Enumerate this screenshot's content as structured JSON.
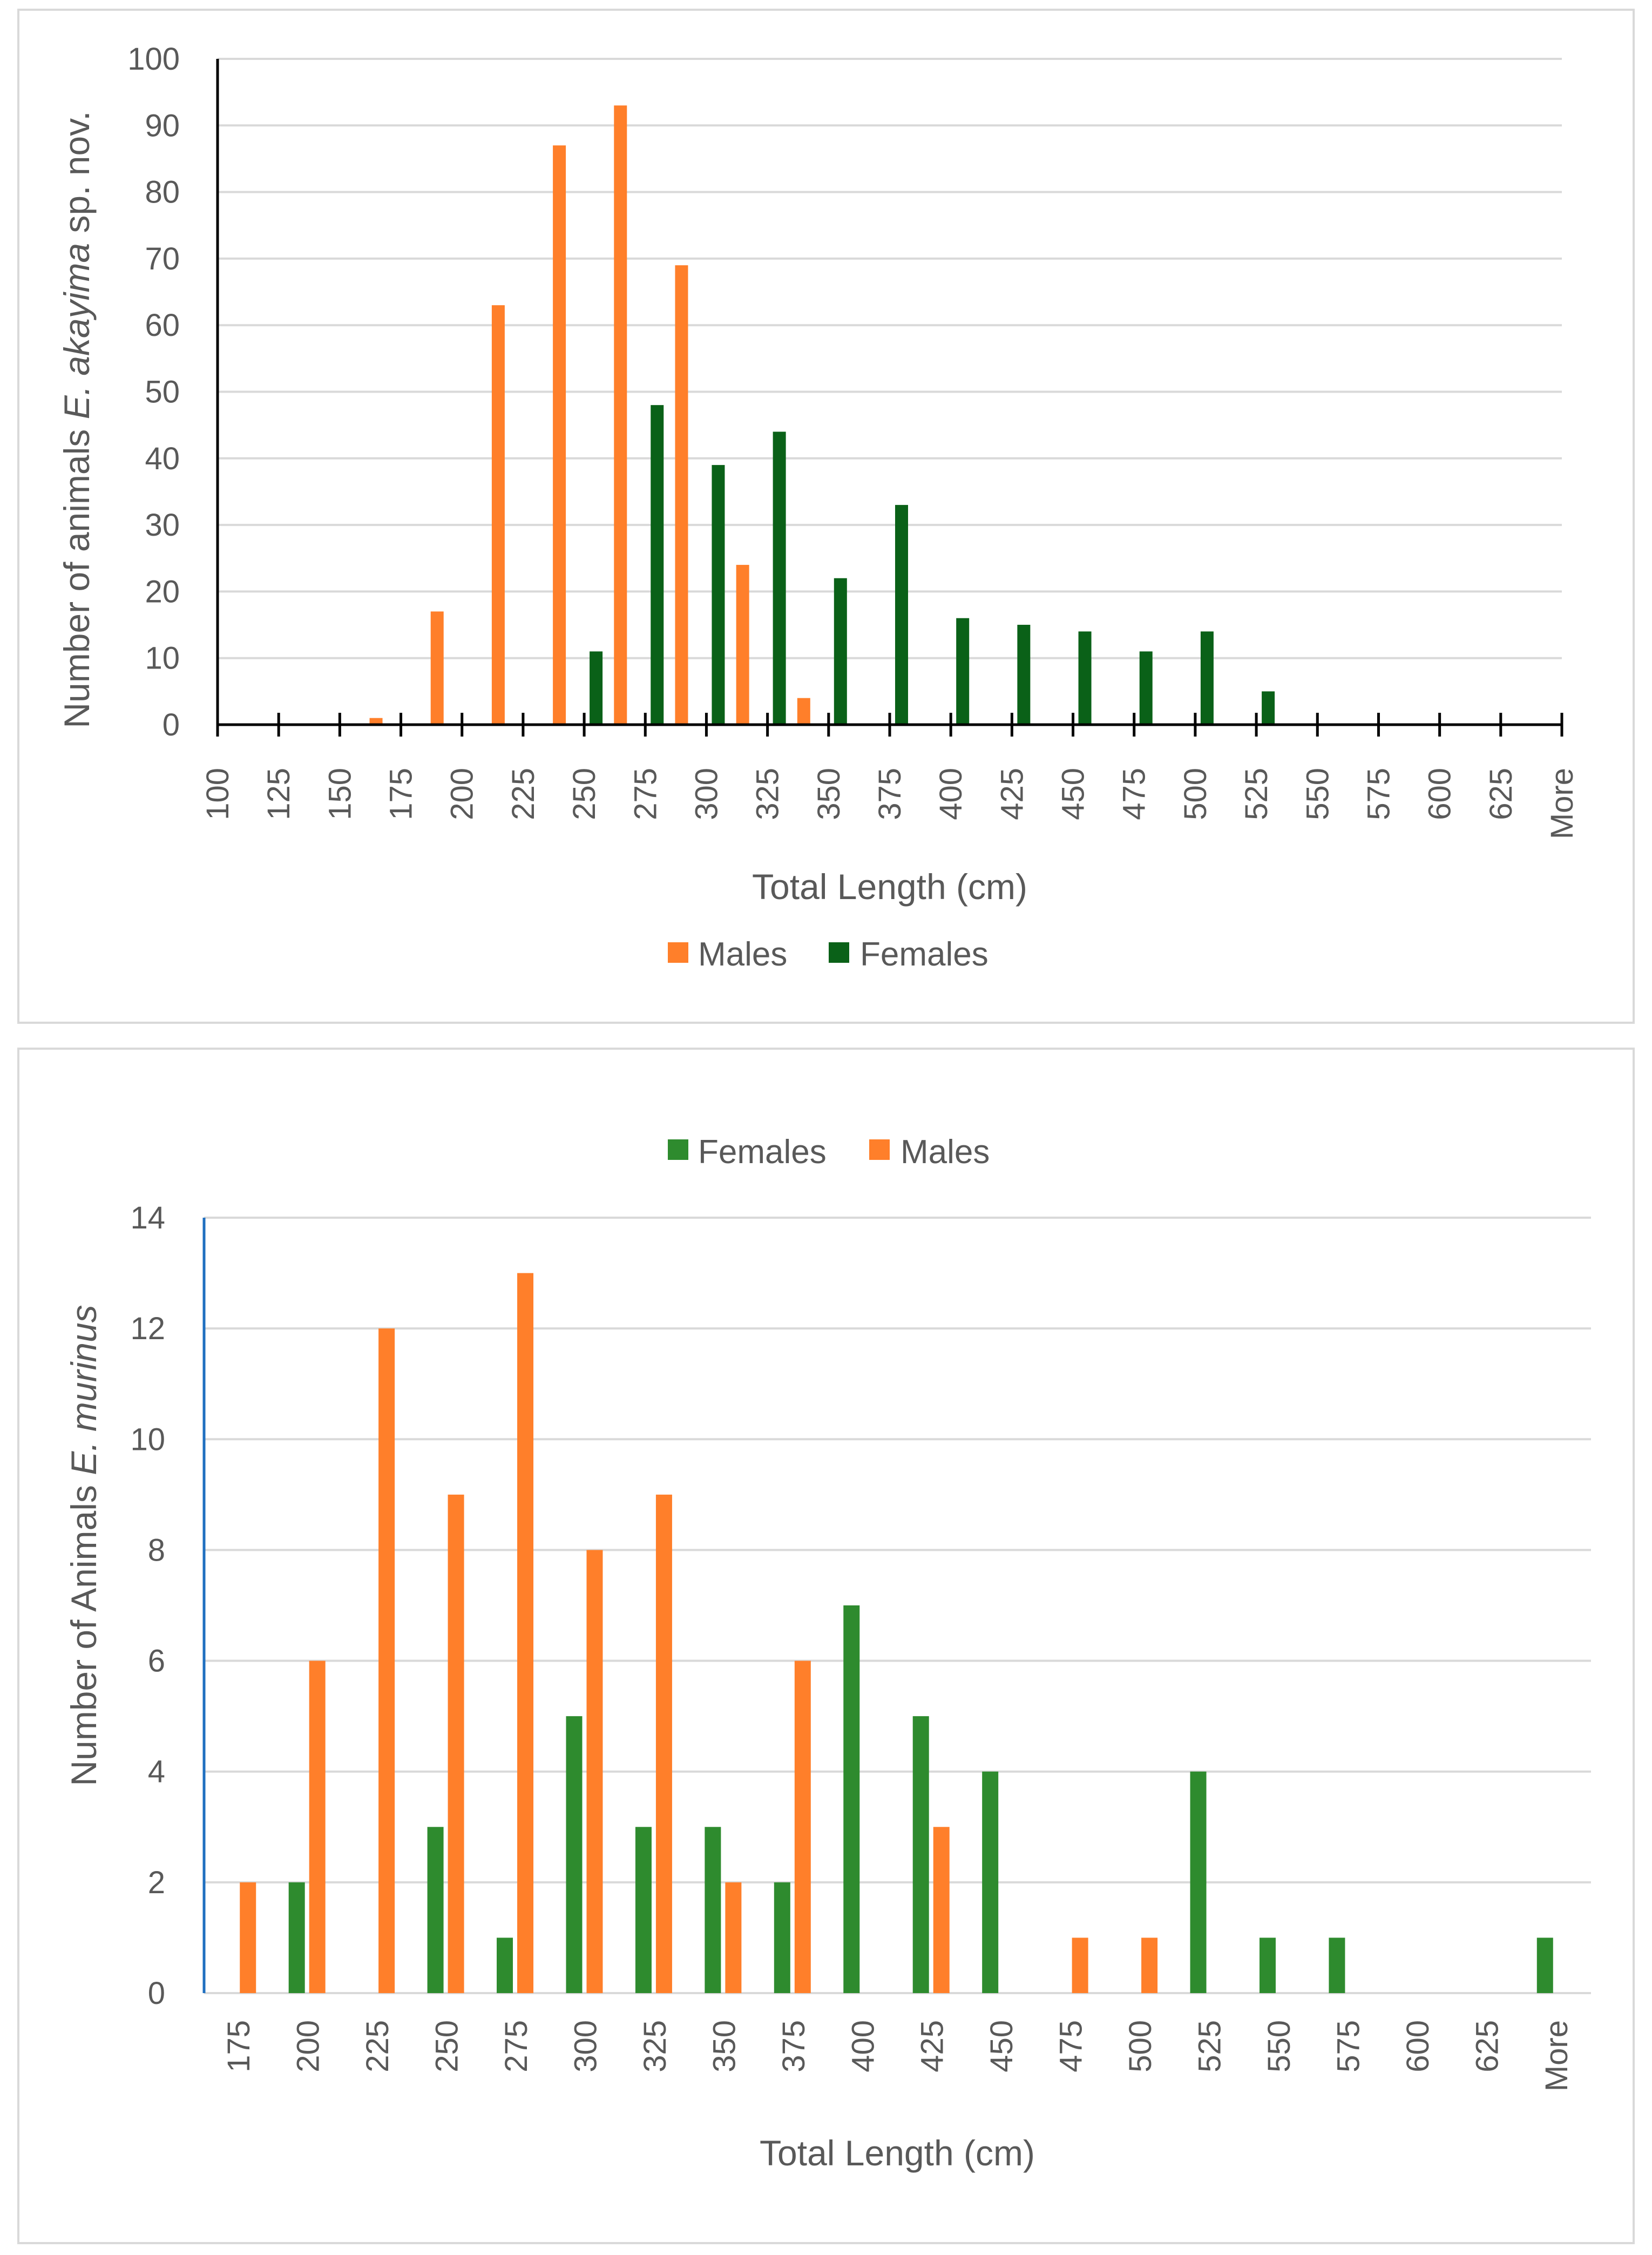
{
  "colors": {
    "male_orange": "#FF7F2A",
    "female_dark_green": "#0A6118",
    "female_green": "#2E8B2E",
    "grid": "#d9d9d9",
    "axis_blue": "#1F6FC0",
    "text": "#595959"
  },
  "chart_data": [
    {
      "type": "bar",
      "title": "",
      "xlabel": "Total Length (cm)",
      "ylabel_prefix": "Number of animals ",
      "ylabel_species": "E. akayima",
      "ylabel_suffix": " sp. nov.",
      "ylim": [
        0,
        100
      ],
      "yticks": [
        "0",
        "10",
        "20",
        "30",
        "40",
        "50",
        "60",
        "70",
        "80",
        "90",
        "100"
      ],
      "categories": [
        "100",
        "125",
        "150",
        "175",
        "200",
        "225",
        "250",
        "275",
        "300",
        "325",
        "350",
        "375",
        "400",
        "425",
        "450",
        "475",
        "500",
        "525",
        "550",
        "575",
        "600",
        "625",
        "More"
      ],
      "legend": [
        "Males",
        "Females"
      ],
      "legend_position": "bottom",
      "series": [
        {
          "name": "Males",
          "color": "#FF7F2A",
          "values": [
            0,
            0,
            0,
            1,
            17,
            63,
            87,
            93,
            69,
            24,
            4,
            0,
            0,
            0,
            0,
            0,
            0,
            0,
            0,
            0,
            0,
            0,
            0
          ]
        },
        {
          "name": "Females",
          "color": "#0A6118",
          "values": [
            0,
            0,
            0,
            0,
            0,
            0,
            11,
            48,
            39,
            44,
            22,
            33,
            16,
            15,
            14,
            11,
            14,
            5,
            0,
            0,
            0,
            0,
            0
          ]
        }
      ]
    },
    {
      "type": "bar",
      "title": "",
      "xlabel": "Total Length (cm)",
      "ylabel_prefix": "Number of Animals ",
      "ylabel_species": "E. murinus",
      "ylabel_suffix": "",
      "ylim": [
        0,
        14
      ],
      "yticks": [
        "0",
        "2",
        "4",
        "6",
        "8",
        "10",
        "12",
        "14"
      ],
      "categories": [
        "175",
        "200",
        "225",
        "250",
        "275",
        "300",
        "325",
        "350",
        "375",
        "400",
        "425",
        "450",
        "475",
        "500",
        "525",
        "550",
        "575",
        "600",
        "625",
        "More"
      ],
      "legend": [
        "Females",
        "Males"
      ],
      "legend_position": "top",
      "series": [
        {
          "name": "Females",
          "color": "#2E8B2E",
          "values": [
            0,
            2,
            0,
            3,
            1,
            5,
            3,
            3,
            2,
            7,
            5,
            4,
            0,
            0,
            4,
            1,
            1,
            0,
            0,
            1
          ]
        },
        {
          "name": "Males",
          "color": "#FF7F2A",
          "values": [
            2,
            6,
            12,
            9,
            13,
            8,
            9,
            2,
            6,
            0,
            3,
            0,
            1,
            1,
            0,
            0,
            0,
            0,
            0,
            0
          ]
        }
      ]
    }
  ]
}
